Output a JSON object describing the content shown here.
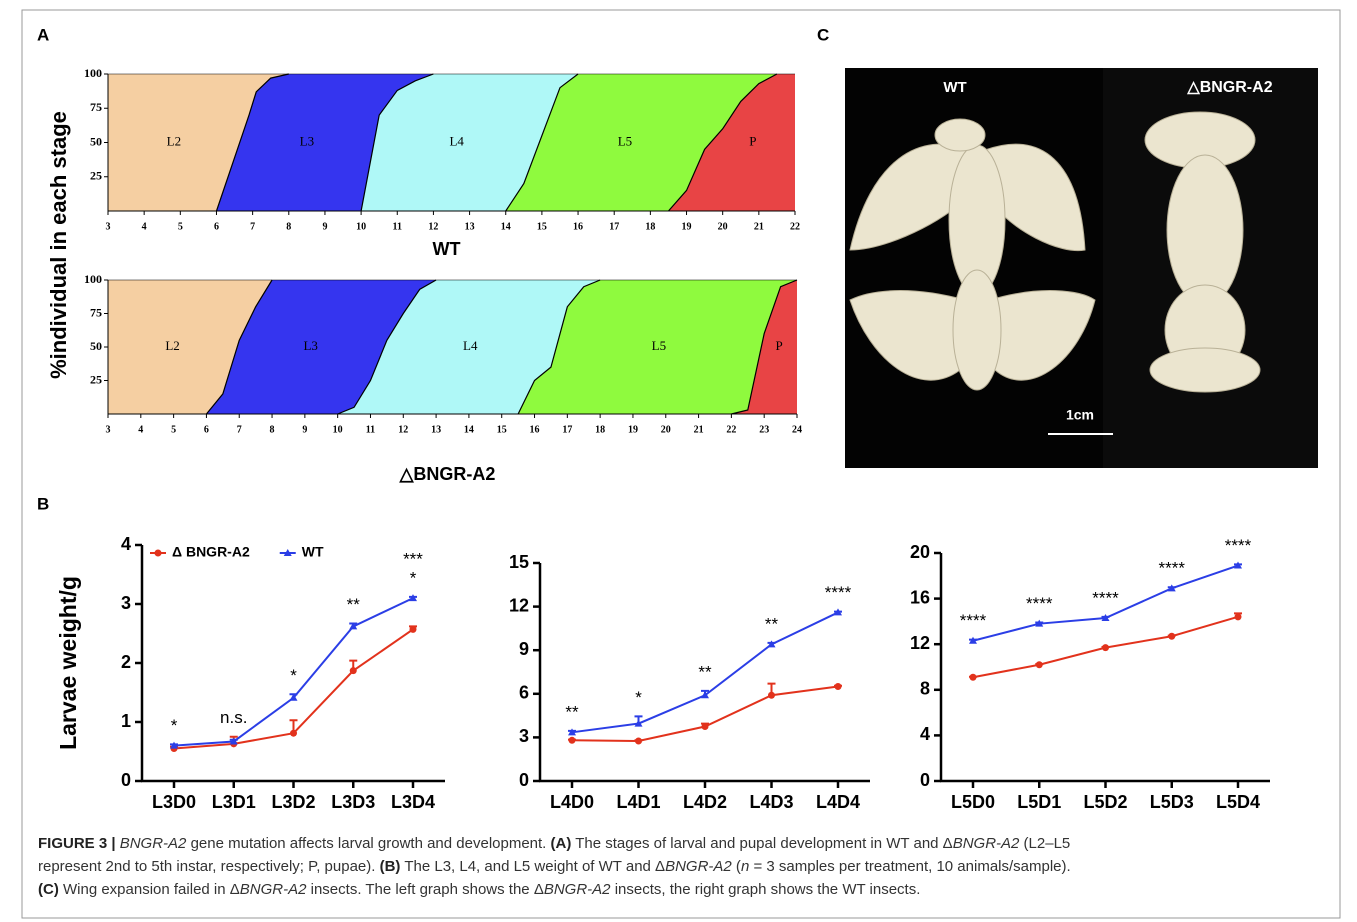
{
  "figure": {
    "panel_labels": [
      "A",
      "B",
      "C"
    ],
    "stage_ylabel": "%individual in each stage",
    "photo": {
      "labels": [
        "WT",
        "△BNGR-A2"
      ],
      "scale_bar": "1cm"
    },
    "caption": [
      [
        "FIGURE 3 | ",
        "BNGR-A2",
        " gene mutation affects larval growth and development. ",
        "(A)",
        " The stages of larval and pupal development in WT and Δ",
        "BNGR-A2",
        " (L2–L5"
      ],
      [
        "represent 2nd to 5th instar, respectively; P, pupae). ",
        "(B)",
        " The L3, L4, and L5 weight of WT and Δ",
        "BNGR-A2",
        " (",
        "n",
        " = 3 samples per treatment, 10 animals/sample)."
      ],
      [
        "(C)",
        " Wing expansion failed in Δ",
        "BNGR-A2",
        " insects. The left graph shows the Δ",
        "BNGR-A2",
        " insects, the right graph shows the WT insects."
      ]
    ]
  },
  "chart_data": [
    {
      "type": "stage-area",
      "xlabel": "WT",
      "xlim": [
        3,
        22
      ],
      "xticks": [
        3,
        4,
        5,
        6,
        7,
        8,
        9,
        10,
        11,
        12,
        13,
        14,
        15,
        16,
        17,
        18,
        19,
        20,
        21,
        22
      ],
      "ylim": [
        0,
        100
      ],
      "yticks": [
        25,
        50,
        75,
        100
      ],
      "stages": [
        {
          "name": "L2",
          "color": "#f5cfa2"
        },
        {
          "name": "L3",
          "color": "#3535ef"
        },
        {
          "name": "L4",
          "color": "#aff8f7"
        },
        {
          "name": "L5",
          "color": "#8ffa3e"
        },
        {
          "name": "P",
          "color": "#e84445"
        }
      ],
      "boundaries": [
        {
          "x": [
            6,
            6.9,
            7.1,
            7.5,
            8
          ],
          "y": [
            0,
            70,
            87,
            97,
            100
          ]
        },
        {
          "x": [
            10,
            10.5,
            11,
            11.5,
            12
          ],
          "y": [
            0,
            70,
            88,
            95,
            100
          ]
        },
        {
          "x": [
            14,
            14.5,
            15.5,
            16
          ],
          "y": [
            0,
            20,
            90,
            100
          ]
        },
        {
          "x": [
            18.5,
            19,
            19.5,
            20,
            20.5,
            21,
            21.5
          ],
          "y": [
            0,
            15,
            45,
            60,
            80,
            93,
            100
          ]
        }
      ]
    },
    {
      "type": "stage-area",
      "xlabel": "△BNGR-A2",
      "xlim": [
        3,
        24
      ],
      "xticks": [
        3,
        4,
        5,
        6,
        7,
        8,
        9,
        10,
        11,
        12,
        13,
        14,
        15,
        16,
        17,
        18,
        19,
        20,
        21,
        22,
        23,
        24
      ],
      "ylim": [
        0,
        100
      ],
      "yticks": [
        25,
        50,
        75,
        100
      ],
      "stages": [
        {
          "name": "L2",
          "color": "#f5cfa2"
        },
        {
          "name": "L3",
          "color": "#3535ef"
        },
        {
          "name": "L4",
          "color": "#aff8f7"
        },
        {
          "name": "L5",
          "color": "#8ffa3e"
        },
        {
          "name": "P",
          "color": "#e84445"
        }
      ],
      "boundaries": [
        {
          "x": [
            6,
            6.5,
            7,
            7.5,
            8
          ],
          "y": [
            0,
            15,
            55,
            80,
            100
          ]
        },
        {
          "x": [
            10,
            10.5,
            11,
            11.5,
            12,
            12.5,
            13
          ],
          "y": [
            0,
            5,
            25,
            55,
            75,
            93,
            100
          ]
        },
        {
          "x": [
            15.5,
            16,
            16.5,
            17,
            17.5,
            18
          ],
          "y": [
            0,
            25,
            35,
            80,
            95,
            100
          ]
        },
        {
          "x": [
            22,
            22.5,
            23,
            23.5,
            24
          ],
          "y": [
            0,
            3,
            60,
            95,
            100
          ]
        }
      ]
    },
    {
      "type": "line",
      "ylabel": "Larvae weight/g",
      "legend": "top-left",
      "categories": [
        "L3D0",
        "L3D1",
        "L3D2",
        "L3D3",
        "L3D4"
      ],
      "ylim": [
        0,
        4
      ],
      "yticks": [
        0,
        1,
        2,
        3,
        4
      ],
      "series": [
        {
          "name": "Δ BNGR-A2",
          "color": "#e2321c",
          "marker": "circle",
          "values": [
            0.55,
            0.63,
            0.81,
            1.87,
            2.57
          ],
          "errors": [
            0.03,
            0.12,
            0.22,
            0.17,
            0.05
          ]
        },
        {
          "name": "WT",
          "color": "#2b3ee6",
          "marker": "triangle",
          "values": [
            0.6,
            0.67,
            1.41,
            2.62,
            3.1
          ],
          "errors": [
            0.02,
            0.03,
            0.06,
            0.05,
            0.02
          ]
        }
      ],
      "annotations": [
        [
          "*"
        ],
        [
          "n.s."
        ],
        [
          "*"
        ],
        [
          "**"
        ],
        [
          "***",
          "*"
        ]
      ]
    },
    {
      "type": "line",
      "categories": [
        "L4D0",
        "L4D1",
        "L4D2",
        "L4D3",
        "L4D4"
      ],
      "ylim": [
        0,
        15
      ],
      "yticks": [
        0,
        3,
        6,
        9,
        12,
        15
      ],
      "series": [
        {
          "color": "#e2321c",
          "marker": "circle",
          "values": [
            2.8,
            2.75,
            3.75,
            5.9,
            6.5
          ],
          "errors": [
            0.05,
            0.05,
            0.2,
            0.8,
            0.05
          ]
        },
        {
          "color": "#2b3ee6",
          "marker": "triangle",
          "values": [
            3.35,
            3.95,
            5.9,
            9.4,
            11.6
          ],
          "errors": [
            0.1,
            0.5,
            0.3,
            0.1,
            0.05
          ]
        }
      ],
      "annotations": [
        [
          "**"
        ],
        [
          "*"
        ],
        [
          "**"
        ],
        [
          "**"
        ],
        [
          "****"
        ]
      ]
    },
    {
      "type": "line",
      "categories": [
        "L5D0",
        "L5D1",
        "L5D2",
        "L5D3",
        "L5D4"
      ],
      "ylim": [
        0,
        20
      ],
      "yticks": [
        0,
        4,
        8,
        12,
        16,
        20
      ],
      "series": [
        {
          "color": "#e2321c",
          "marker": "circle",
          "values": [
            9.1,
            10.2,
            11.7,
            12.7,
            14.4
          ],
          "errors": [
            0.05,
            0.05,
            0.05,
            0.05,
            0.3
          ]
        },
        {
          "color": "#2b3ee6",
          "marker": "triangle",
          "values": [
            12.3,
            13.8,
            14.3,
            16.9,
            18.9
          ],
          "errors": [
            0.1,
            0.1,
            0.1,
            0.1,
            0.1
          ]
        }
      ],
      "annotations": [
        [
          "****"
        ],
        [
          "****"
        ],
        [
          "****"
        ],
        [
          "****"
        ],
        [
          "****"
        ]
      ]
    }
  ]
}
